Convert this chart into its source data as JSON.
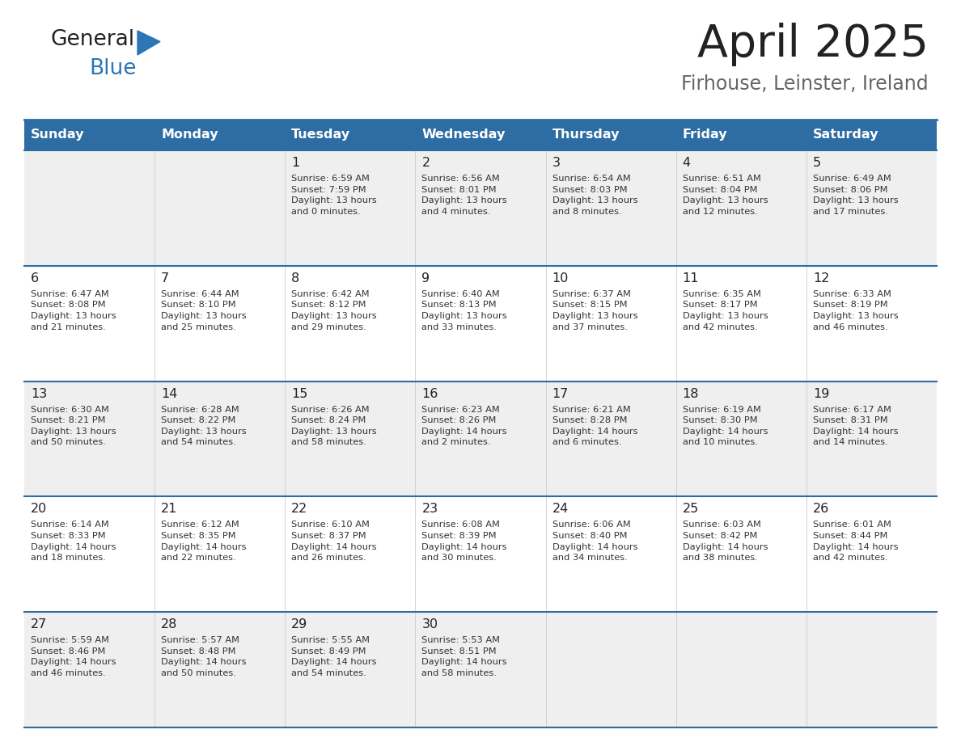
{
  "title": "April 2025",
  "subtitle": "Firhouse, Leinster, Ireland",
  "days_of_week": [
    "Sunday",
    "Monday",
    "Tuesday",
    "Wednesday",
    "Thursday",
    "Friday",
    "Saturday"
  ],
  "header_bg": "#2E6DA4",
  "header_text": "#FFFFFF",
  "row_bg_odd": "#EFEFEF",
  "row_bg_even": "#FFFFFF",
  "cell_text_color": "#333333",
  "day_num_color": "#222222",
  "title_color": "#222222",
  "subtitle_color": "#666666",
  "divider_color": "#2E6DA4",
  "logo_color_general": "#222222",
  "logo_color_blue": "#2E75B6",
  "calendar_data": [
    [
      {
        "day": null,
        "info": null
      },
      {
        "day": null,
        "info": null
      },
      {
        "day": 1,
        "info": "Sunrise: 6:59 AM\nSunset: 7:59 PM\nDaylight: 13 hours\nand 0 minutes."
      },
      {
        "day": 2,
        "info": "Sunrise: 6:56 AM\nSunset: 8:01 PM\nDaylight: 13 hours\nand 4 minutes."
      },
      {
        "day": 3,
        "info": "Sunrise: 6:54 AM\nSunset: 8:03 PM\nDaylight: 13 hours\nand 8 minutes."
      },
      {
        "day": 4,
        "info": "Sunrise: 6:51 AM\nSunset: 8:04 PM\nDaylight: 13 hours\nand 12 minutes."
      },
      {
        "day": 5,
        "info": "Sunrise: 6:49 AM\nSunset: 8:06 PM\nDaylight: 13 hours\nand 17 minutes."
      }
    ],
    [
      {
        "day": 6,
        "info": "Sunrise: 6:47 AM\nSunset: 8:08 PM\nDaylight: 13 hours\nand 21 minutes."
      },
      {
        "day": 7,
        "info": "Sunrise: 6:44 AM\nSunset: 8:10 PM\nDaylight: 13 hours\nand 25 minutes."
      },
      {
        "day": 8,
        "info": "Sunrise: 6:42 AM\nSunset: 8:12 PM\nDaylight: 13 hours\nand 29 minutes."
      },
      {
        "day": 9,
        "info": "Sunrise: 6:40 AM\nSunset: 8:13 PM\nDaylight: 13 hours\nand 33 minutes."
      },
      {
        "day": 10,
        "info": "Sunrise: 6:37 AM\nSunset: 8:15 PM\nDaylight: 13 hours\nand 37 minutes."
      },
      {
        "day": 11,
        "info": "Sunrise: 6:35 AM\nSunset: 8:17 PM\nDaylight: 13 hours\nand 42 minutes."
      },
      {
        "day": 12,
        "info": "Sunrise: 6:33 AM\nSunset: 8:19 PM\nDaylight: 13 hours\nand 46 minutes."
      }
    ],
    [
      {
        "day": 13,
        "info": "Sunrise: 6:30 AM\nSunset: 8:21 PM\nDaylight: 13 hours\nand 50 minutes."
      },
      {
        "day": 14,
        "info": "Sunrise: 6:28 AM\nSunset: 8:22 PM\nDaylight: 13 hours\nand 54 minutes."
      },
      {
        "day": 15,
        "info": "Sunrise: 6:26 AM\nSunset: 8:24 PM\nDaylight: 13 hours\nand 58 minutes."
      },
      {
        "day": 16,
        "info": "Sunrise: 6:23 AM\nSunset: 8:26 PM\nDaylight: 14 hours\nand 2 minutes."
      },
      {
        "day": 17,
        "info": "Sunrise: 6:21 AM\nSunset: 8:28 PM\nDaylight: 14 hours\nand 6 minutes."
      },
      {
        "day": 18,
        "info": "Sunrise: 6:19 AM\nSunset: 8:30 PM\nDaylight: 14 hours\nand 10 minutes."
      },
      {
        "day": 19,
        "info": "Sunrise: 6:17 AM\nSunset: 8:31 PM\nDaylight: 14 hours\nand 14 minutes."
      }
    ],
    [
      {
        "day": 20,
        "info": "Sunrise: 6:14 AM\nSunset: 8:33 PM\nDaylight: 14 hours\nand 18 minutes."
      },
      {
        "day": 21,
        "info": "Sunrise: 6:12 AM\nSunset: 8:35 PM\nDaylight: 14 hours\nand 22 minutes."
      },
      {
        "day": 22,
        "info": "Sunrise: 6:10 AM\nSunset: 8:37 PM\nDaylight: 14 hours\nand 26 minutes."
      },
      {
        "day": 23,
        "info": "Sunrise: 6:08 AM\nSunset: 8:39 PM\nDaylight: 14 hours\nand 30 minutes."
      },
      {
        "day": 24,
        "info": "Sunrise: 6:06 AM\nSunset: 8:40 PM\nDaylight: 14 hours\nand 34 minutes."
      },
      {
        "day": 25,
        "info": "Sunrise: 6:03 AM\nSunset: 8:42 PM\nDaylight: 14 hours\nand 38 minutes."
      },
      {
        "day": 26,
        "info": "Sunrise: 6:01 AM\nSunset: 8:44 PM\nDaylight: 14 hours\nand 42 minutes."
      }
    ],
    [
      {
        "day": 27,
        "info": "Sunrise: 5:59 AM\nSunset: 8:46 PM\nDaylight: 14 hours\nand 46 minutes."
      },
      {
        "day": 28,
        "info": "Sunrise: 5:57 AM\nSunset: 8:48 PM\nDaylight: 14 hours\nand 50 minutes."
      },
      {
        "day": 29,
        "info": "Sunrise: 5:55 AM\nSunset: 8:49 PM\nDaylight: 14 hours\nand 54 minutes."
      },
      {
        "day": 30,
        "info": "Sunrise: 5:53 AM\nSunset: 8:51 PM\nDaylight: 14 hours\nand 58 minutes."
      },
      {
        "day": null,
        "info": null
      },
      {
        "day": null,
        "info": null
      },
      {
        "day": null,
        "info": null
      }
    ]
  ],
  "fig_width": 11.88,
  "fig_height": 9.18,
  "dpi": 100
}
